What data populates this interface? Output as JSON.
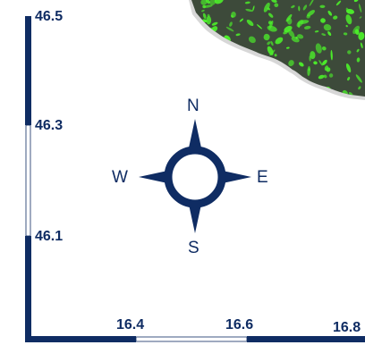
{
  "map": {
    "y_ticks": [
      "46.5",
      "46.3",
      "46.1"
    ],
    "x_ticks": [
      "16.4",
      "16.6",
      "16.8"
    ],
    "compass": {
      "north": "N",
      "south": "S",
      "east": "E",
      "west": "W"
    },
    "colors": {
      "frame": "#0f2c63",
      "land_dark": "#3d4a3a",
      "vegetation": "#4cf02a",
      "coast_shade": "#b7b7b7",
      "background": "#ffffff"
    }
  }
}
